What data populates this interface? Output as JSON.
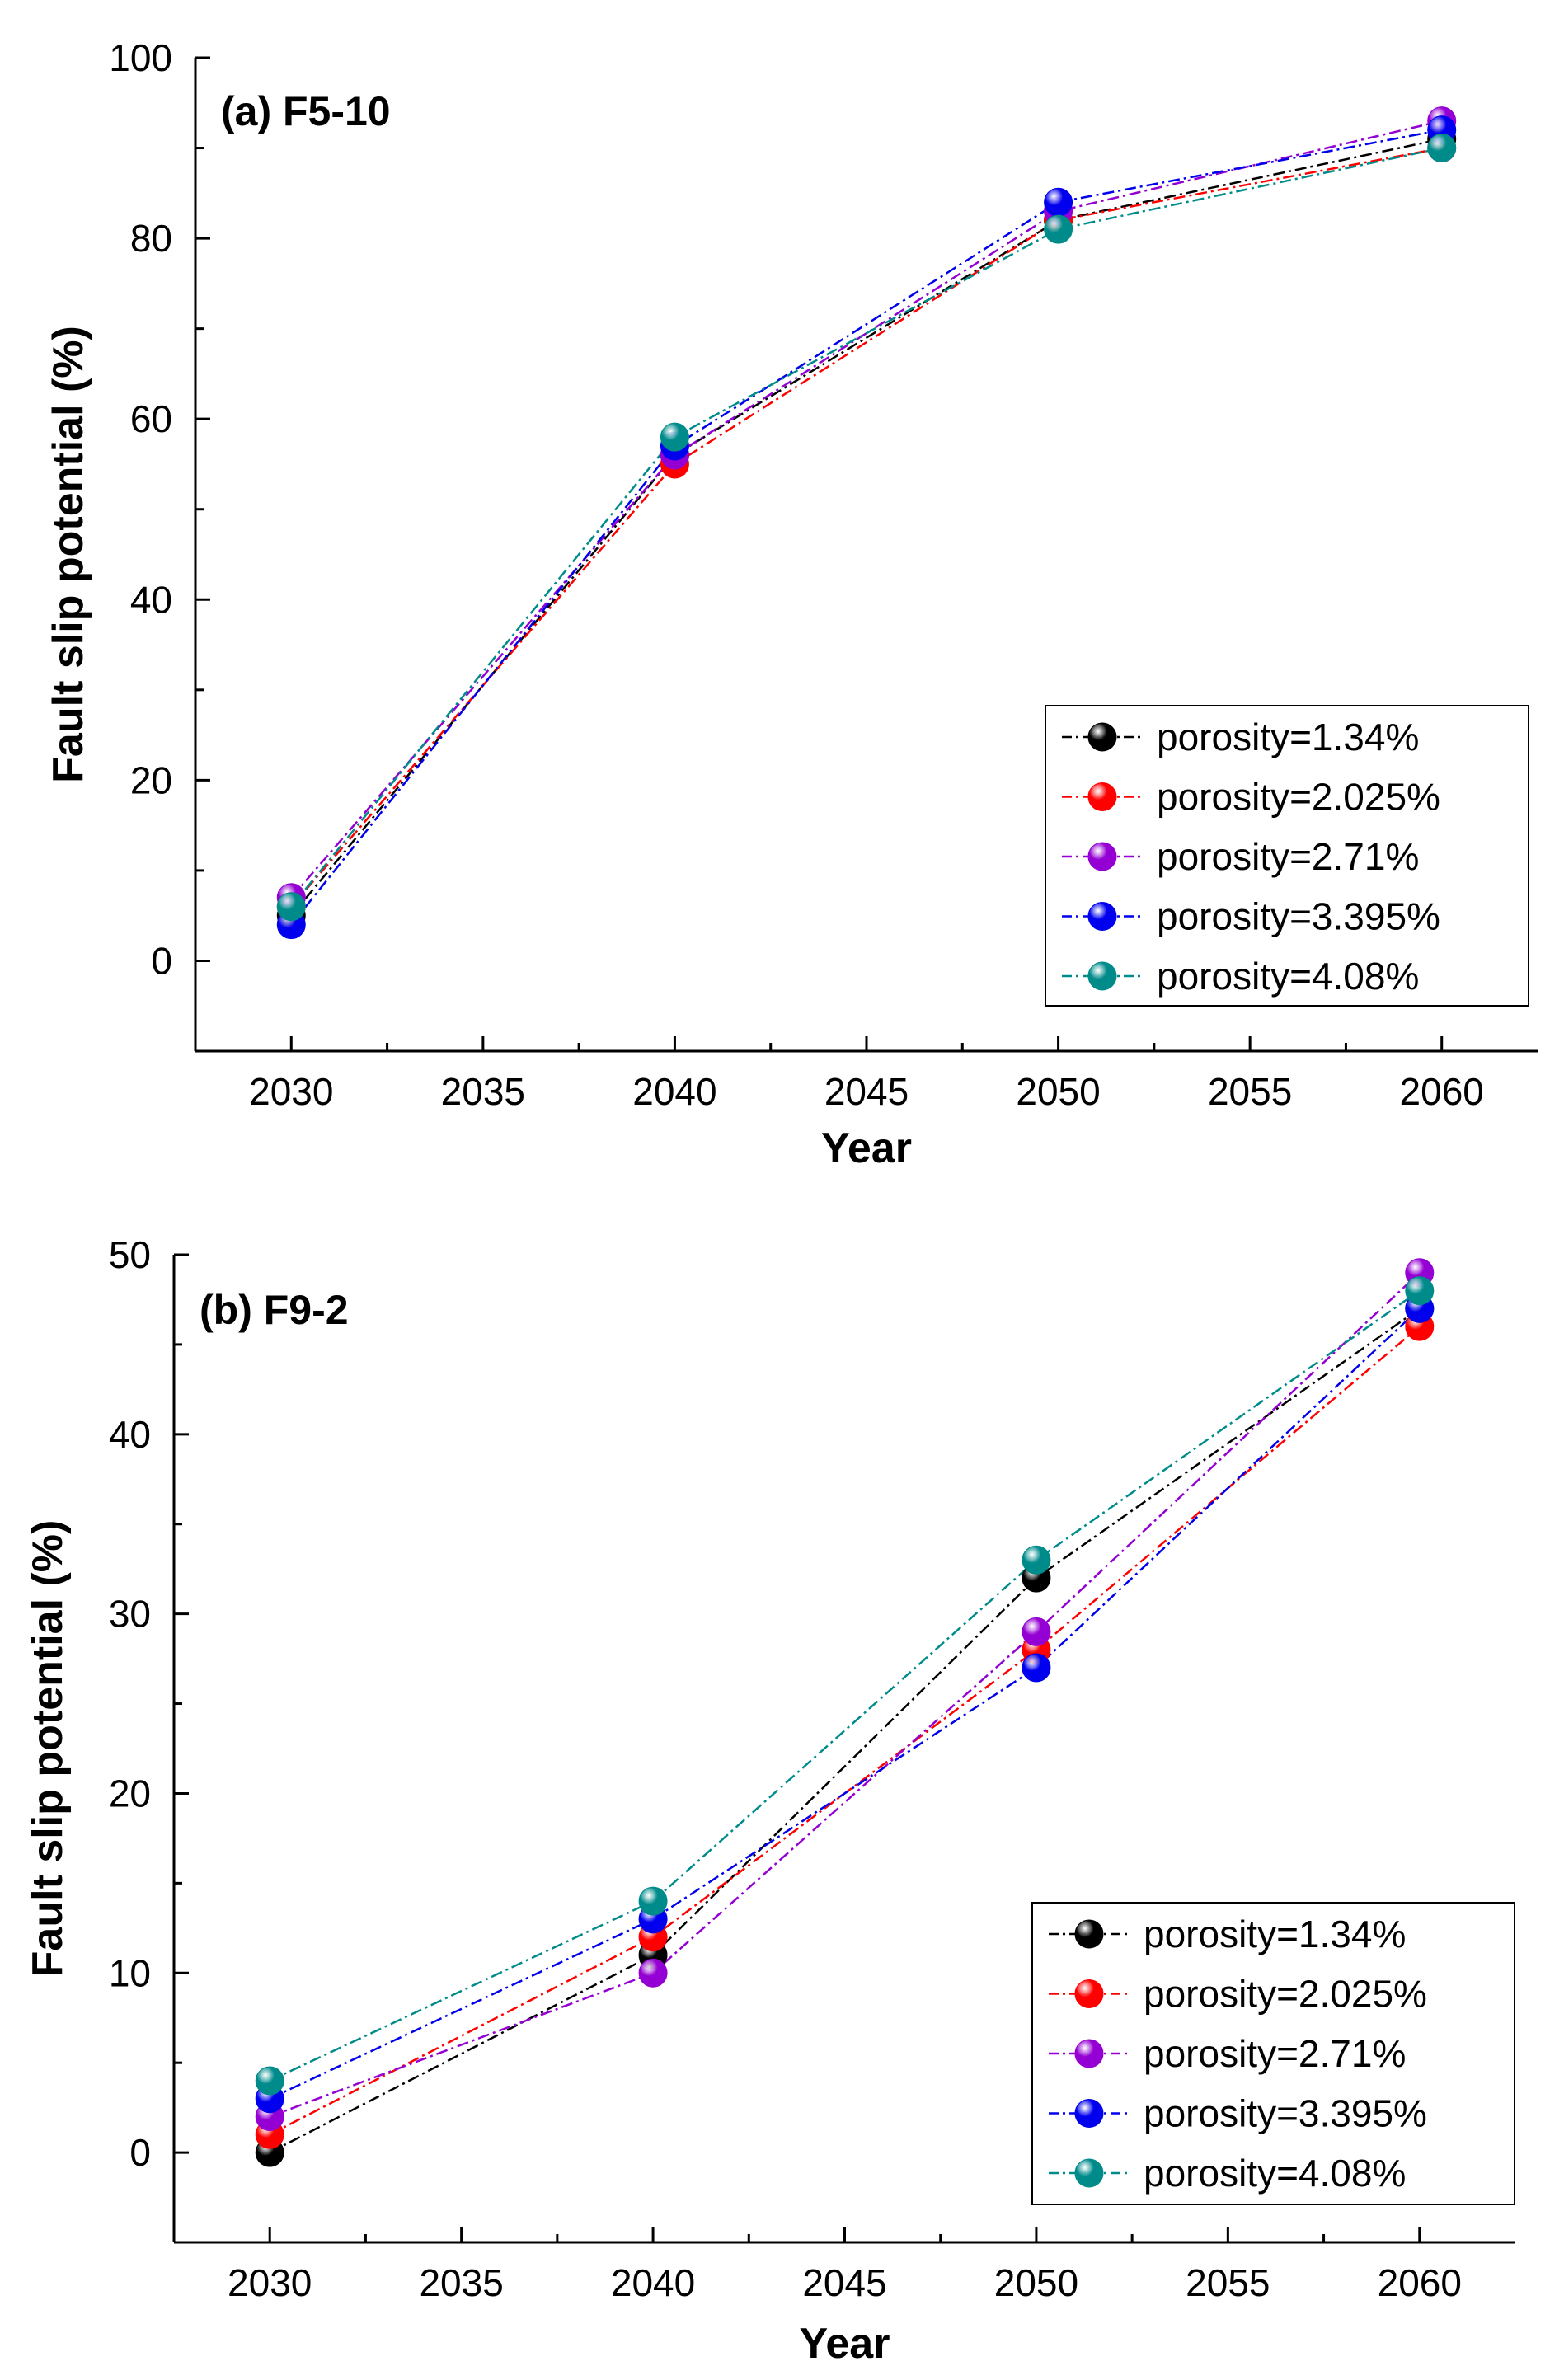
{
  "chart_data": [
    {
      "type": "line",
      "title": "(a) F5-10",
      "xlabel": "Year",
      "ylabel": "Fault slip potential (%)",
      "x": [
        2030,
        2040,
        2050,
        2060
      ],
      "xlim": [
        2027.5,
        2062.5
      ],
      "ylim": [
        -10,
        100
      ],
      "xticks": [
        2030,
        2035,
        2040,
        2045,
        2050,
        2055,
        2060
      ],
      "yticks": [
        0,
        20,
        40,
        60,
        80,
        100
      ],
      "legend_position": "bottom-right",
      "series": [
        {
          "name": "porosity=1.34%",
          "color": "#000000",
          "values": [
            5,
            56,
            82,
            91
          ]
        },
        {
          "name": "porosity=2.025%",
          "color": "#ff0000",
          "values": [
            6,
            55,
            82,
            90
          ]
        },
        {
          "name": "porosity=2.71%",
          "color": "#9400d3",
          "values": [
            7,
            56,
            83,
            93
          ]
        },
        {
          "name": "porosity=3.395%",
          "color": "#0000ee",
          "values": [
            4,
            57,
            84,
            92
          ]
        },
        {
          "name": "porosity=4.08%",
          "color": "#008b8b",
          "values": [
            6,
            58,
            81,
            90
          ]
        }
      ]
    },
    {
      "type": "line",
      "title": "(b) F9-2",
      "xlabel": "Year",
      "ylabel": "Fault slip potential (%)",
      "x": [
        2030,
        2040,
        2050,
        2060
      ],
      "xlim": [
        2027.5,
        2062.5
      ],
      "ylim": [
        -5,
        50
      ],
      "xticks": [
        2030,
        2035,
        2040,
        2045,
        2050,
        2055,
        2060
      ],
      "yticks": [
        0,
        10,
        20,
        30,
        40,
        50
      ],
      "legend_position": "bottom-right",
      "series": [
        {
          "name": "porosity=1.34%",
          "color": "#000000",
          "values": [
            0,
            11,
            32,
            47
          ]
        },
        {
          "name": "porosity=2.025%",
          "color": "#ff0000",
          "values": [
            1,
            12,
            28,
            46
          ]
        },
        {
          "name": "porosity=2.71%",
          "color": "#9400d3",
          "values": [
            2,
            10,
            29,
            49
          ]
        },
        {
          "name": "porosity=3.395%",
          "color": "#0000ee",
          "values": [
            3,
            13,
            27,
            47
          ]
        },
        {
          "name": "porosity=4.08%",
          "color": "#008b8b",
          "values": [
            4,
            14,
            33,
            48
          ]
        }
      ]
    }
  ]
}
